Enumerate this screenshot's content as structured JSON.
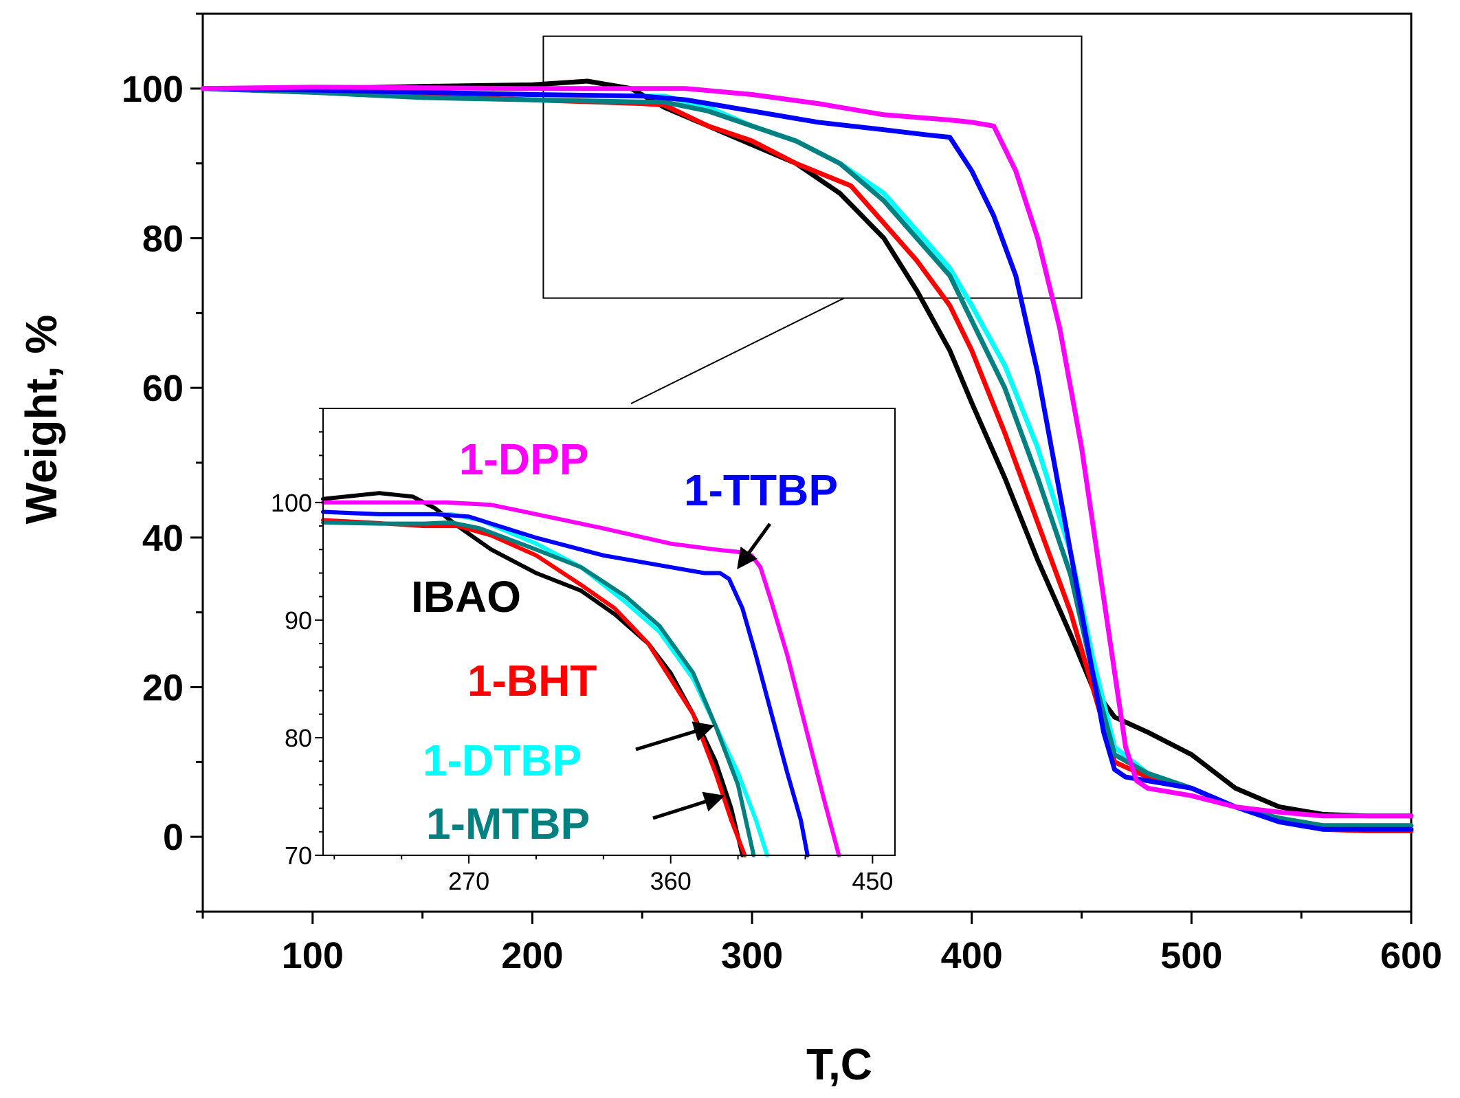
{
  "chart_data": [
    {
      "id": "main",
      "type": "line",
      "title": "",
      "xlabel": "T,C",
      "ylabel": "Weight, %",
      "xlim": [
        50,
        600
      ],
      "ylim": [
        -10,
        110
      ],
      "xticks": [
        100,
        200,
        300,
        400,
        500,
        600
      ],
      "xtick_labels": [
        "100",
        "200",
        "300",
        "400",
        "500",
        "600"
      ],
      "yticks": [
        0,
        20,
        40,
        60,
        80,
        100
      ],
      "ytick_labels": [
        "0",
        "20",
        "40",
        "60",
        "80",
        "100"
      ],
      "zoom_box": {
        "x": [
          205,
          450
        ],
        "y": [
          72,
          107
        ]
      },
      "series": [
        {
          "name": "IBAO",
          "color": "#000000",
          "x": [
            50,
            100,
            150,
            200,
            225,
            245,
            260,
            280,
            300,
            320,
            340,
            360,
            375,
            390,
            400,
            415,
            430,
            445,
            455,
            465,
            480,
            500,
            520,
            540,
            560,
            580,
            600
          ],
          "y": [
            100,
            100,
            100.3,
            100.5,
            101,
            100,
            97.5,
            95,
            92.5,
            90,
            86,
            80,
            73,
            65,
            58,
            48,
            37,
            27,
            20,
            16,
            14,
            11,
            6.5,
            4,
            3,
            2.8,
            2.8
          ]
        },
        {
          "name": "1-BHT",
          "color": "#ff0000",
          "x": [
            50,
            100,
            150,
            200,
            250,
            260,
            280,
            300,
            320,
            345,
            360,
            375,
            390,
            400,
            415,
            430,
            445,
            455,
            465,
            480,
            500,
            520,
            540,
            560,
            580,
            600
          ],
          "y": [
            100,
            99.5,
            99,
            98.5,
            98,
            97.8,
            95,
            93,
            90,
            87,
            82,
            77,
            71,
            65,
            54,
            42,
            30,
            20,
            10,
            8,
            6.5,
            4,
            2,
            1,
            0.8,
            0.8
          ]
        },
        {
          "name": "1-DTBP",
          "color": "#00ffff",
          "x": [
            50,
            100,
            150,
            200,
            250,
            260,
            280,
            300,
            320,
            340,
            360,
            375,
            390,
            400,
            415,
            430,
            445,
            455,
            465,
            480,
            500,
            520,
            540,
            560,
            580,
            600
          ],
          "y": [
            100,
            99.8,
            99.5,
            99.2,
            99,
            99,
            97.5,
            95,
            93,
            90,
            86,
            81,
            76,
            71,
            63,
            52,
            38,
            24,
            12,
            8.5,
            6.5,
            4,
            2,
            1,
            1,
            1
          ]
        },
        {
          "name": "1-MTBP",
          "color": "#008080",
          "x": [
            50,
            100,
            150,
            200,
            250,
            260,
            280,
            300,
            320,
            340,
            360,
            375,
            390,
            400,
            415,
            430,
            445,
            455,
            465,
            480,
            500,
            520,
            540,
            560,
            580,
            600
          ],
          "y": [
            100,
            99.5,
            98.8,
            98.5,
            98.2,
            98.2,
            97,
            95,
            93,
            90,
            85,
            80,
            75,
            69,
            60,
            48,
            35,
            22,
            11,
            8.5,
            6.5,
            4,
            2.5,
            1.5,
            1.5,
            1.5
          ]
        },
        {
          "name": "1-TTBP",
          "color": "#0000ff",
          "x": [
            50,
            100,
            150,
            200,
            250,
            270,
            300,
            330,
            360,
            380,
            390,
            400,
            410,
            420,
            430,
            440,
            450,
            460,
            465,
            470,
            480,
            500,
            520,
            540,
            560,
            580,
            600
          ],
          "y": [
            100,
            99.8,
            99.5,
            99.2,
            99,
            98.5,
            97,
            95.5,
            94.5,
            93.8,
            93.5,
            89,
            83,
            75,
            62,
            46,
            30,
            14,
            9,
            8,
            7.5,
            6.5,
            4,
            2,
            1,
            1,
            1
          ]
        },
        {
          "name": "1-DPP",
          "color": "#ff00ff",
          "x": [
            50,
            100,
            150,
            200,
            250,
            270,
            300,
            330,
            360,
            390,
            400,
            410,
            420,
            430,
            440,
            450,
            460,
            470,
            475,
            480,
            500,
            520,
            540,
            560,
            580,
            600
          ],
          "y": [
            100,
            100.2,
            100.1,
            100,
            100,
            100,
            99.2,
            98,
            96.5,
            95.8,
            95.5,
            95,
            89,
            80,
            68,
            52,
            32,
            12,
            7.5,
            6.5,
            5.5,
            4,
            3.3,
            2.8,
            2.8,
            2.8
          ]
        }
      ]
    },
    {
      "id": "inset",
      "type": "line",
      "title": "",
      "xlabel": "",
      "ylabel": "",
      "xlim": [
        205,
        460
      ],
      "ylim": [
        70,
        108
      ],
      "xticks": [
        270,
        360,
        450
      ],
      "xtick_labels": [
        "270",
        "360",
        "450"
      ],
      "yticks": [
        70,
        80,
        90,
        100
      ],
      "ytick_labels": [
        "70",
        "80",
        "90",
        "100"
      ],
      "series": [
        {
          "name": "IBAO",
          "color": "#000000",
          "x": [
            205,
            215,
            230,
            245,
            255,
            265,
            280,
            300,
            320,
            335,
            350,
            360,
            370,
            380,
            387,
            392
          ],
          "y": [
            100.3,
            100.5,
            100.8,
            100.5,
            99.5,
            98,
            96,
            94,
            92.5,
            90.5,
            88,
            85.5,
            82,
            78,
            74,
            70
          ]
        },
        {
          "name": "1-BHT",
          "color": "#ff0000",
          "x": [
            205,
            225,
            250,
            265,
            280,
            300,
            320,
            335,
            350,
            360,
            370,
            380,
            387,
            393
          ],
          "y": [
            98.5,
            98.3,
            98,
            98,
            97.2,
            95.5,
            93,
            91,
            88,
            85,
            82,
            77,
            73,
            70
          ]
        },
        {
          "name": "1-DTBP",
          "color": "#00ffff",
          "x": [
            205,
            230,
            250,
            262,
            275,
            300,
            320,
            340,
            355,
            370,
            380,
            390,
            398,
            403
          ],
          "y": [
            99.2,
            99,
            99,
            99,
            98.5,
            96.5,
            94.5,
            91.5,
            89,
            85,
            81,
            77,
            73,
            70
          ]
        },
        {
          "name": "1-MTBP",
          "color": "#008080",
          "x": [
            205,
            230,
            250,
            262,
            275,
            300,
            320,
            340,
            355,
            370,
            380,
            390,
            397
          ],
          "y": [
            98.3,
            98.2,
            98.2,
            98.3,
            97.8,
            96,
            94.5,
            92,
            89.5,
            85.5,
            81,
            76,
            70
          ]
        },
        {
          "name": "1-TTBP",
          "color": "#0000ff",
          "x": [
            205,
            230,
            255,
            270,
            300,
            330,
            360,
            375,
            382,
            386,
            392,
            398,
            405,
            412,
            418,
            421
          ],
          "y": [
            99.2,
            99,
            99,
            98.8,
            97,
            95.5,
            94.5,
            94,
            94,
            93.5,
            91,
            87,
            82,
            77,
            73,
            70
          ]
        },
        {
          "name": "1-DPP",
          "color": "#ff00ff",
          "x": [
            205,
            230,
            260,
            280,
            300,
            330,
            360,
            380,
            390,
            396,
            400,
            405,
            412,
            420,
            428,
            435
          ],
          "y": [
            100,
            100,
            100,
            99.8,
            99,
            97.8,
            96.5,
            96,
            95.8,
            95.5,
            94.5,
            91.5,
            87,
            81,
            75,
            70
          ]
        }
      ],
      "labels": [
        {
          "text": "1-DPP",
          "color": "#ff00ff"
        },
        {
          "text": "1-TTBP",
          "color": "#0000ff"
        },
        {
          "text": "IBAO",
          "color": "#000000"
        },
        {
          "text": "1-BHT",
          "color": "#ff0000"
        },
        {
          "text": "1-DTBP",
          "color": "#00ffff"
        },
        {
          "text": "1-MTBP",
          "color": "#008080"
        }
      ]
    }
  ]
}
